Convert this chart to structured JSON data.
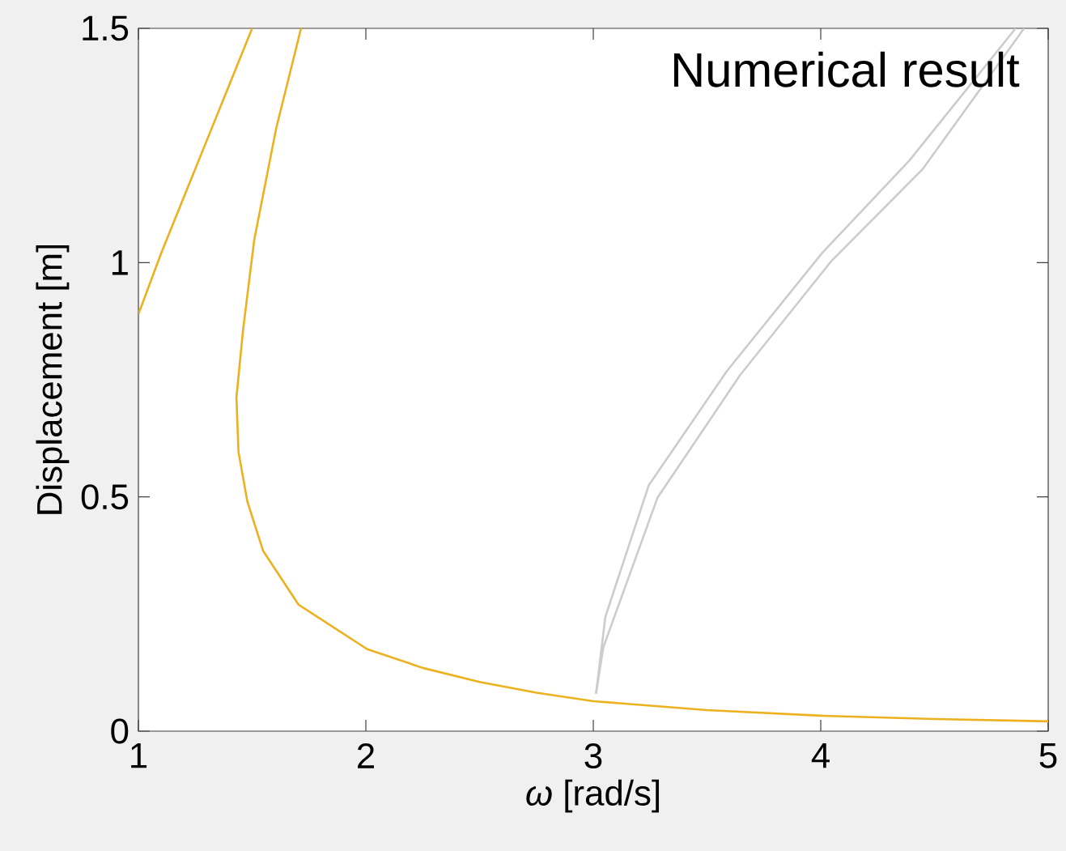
{
  "chart_data": {
    "type": "line",
    "xlabel": "*ω* [rad/s]",
    "ylabel": "Displacement [m]",
    "annotations": [
      "Numerical result"
    ],
    "xlim": [
      1,
      5
    ],
    "ylim": [
      0,
      1.5
    ],
    "xticks": [
      1,
      2,
      3,
      4,
      5
    ],
    "yticks": [
      0,
      0.5,
      1,
      1.5
    ],
    "line_style": "solid",
    "marker": "none",
    "series": [
      {
        "color": "#edb120",
        "x": [
          1,
          1.1,
          1.2,
          1.3,
          1.4,
          1.5
        ],
        "values": [
          0.89,
          1.02,
          1.14,
          1.26,
          1.38,
          1.5
        ]
      },
      {
        "color": "#edb120",
        "x": [
          1.715,
          1.606,
          1.509,
          1.46,
          1.431,
          1.44,
          1.479,
          1.548,
          1.704,
          2.006,
          2.25,
          2.5,
          2.75,
          3,
          3.5,
          4,
          4.5,
          5
        ],
        "values": [
          1.5,
          1.287,
          1.048,
          0.856,
          0.712,
          0.596,
          0.49,
          0.385,
          0.27,
          0.175,
          0.135,
          0.105,
          0.082,
          0.064,
          0.045,
          0.033,
          0.026,
          0.021
        ]
      },
      {
        "color": "#cccccc",
        "x": [
          3.012,
          3.053,
          3.244,
          3.588,
          4.007,
          4.39,
          4.857
        ],
        "values": [
          0.08,
          0.244,
          0.525,
          0.769,
          1.021,
          1.218,
          1.5
        ]
      },
      {
        "color": "#cccccc",
        "x": [
          3.012,
          3.044,
          3.282,
          3.644,
          4.046,
          4.447,
          4.894
        ],
        "values": [
          0.08,
          0.179,
          0.498,
          0.759,
          1.003,
          1.199,
          1.5
        ]
      }
    ]
  }
}
